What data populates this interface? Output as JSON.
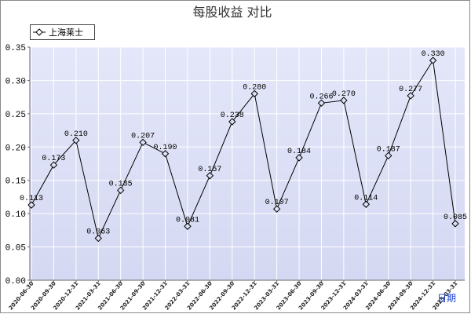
{
  "chart_data": {
    "type": "line",
    "title": "每股收益 对比",
    "xlabel": "日期",
    "ylim": [
      0,
      0.35
    ],
    "yticks": [
      "0.00",
      "0.05",
      "0.10",
      "0.15",
      "0.20",
      "0.25",
      "0.30",
      "0.35"
    ],
    "categories": [
      "2020-06-30",
      "2020-09-30",
      "2020-12-31",
      "2021-03-31",
      "2021-06-30",
      "2021-09-30",
      "2021-12-31",
      "2022-03-31",
      "2022-06-30",
      "2022-09-30",
      "2022-12-31",
      "2023-03-31",
      "2023-06-30",
      "2023-09-30",
      "2023-12-31",
      "2024-03-31",
      "2024-06-30",
      "2024-09-30",
      "2024-12-31",
      "2025-03-31"
    ],
    "series": [
      {
        "name": "上海莱士",
        "values": [
          0.113,
          0.173,
          0.21,
          0.063,
          0.135,
          0.207,
          0.19,
          0.081,
          0.157,
          0.238,
          0.28,
          0.107,
          0.184,
          0.266,
          0.27,
          0.114,
          0.187,
          0.277,
          0.33,
          0.085
        ],
        "labels": [
          "0.113",
          "0.173",
          "0.210",
          "0.063",
          "0.135",
          "0.207",
          "0.190",
          "0.081",
          "0.157",
          "0.238",
          "0.280",
          "0.107",
          "0.184",
          "0.266",
          "0.270",
          "0.114",
          "0.187",
          "0.277",
          "0.330",
          "0.085"
        ],
        "marker": "diamond"
      }
    ],
    "grid": true,
    "legend": "top-left"
  },
  "colors": {
    "plot_background_top": "#e4e7f9",
    "plot_background_bottom": "#d4d8f2",
    "grid": "#ffffff",
    "axis": "#666666",
    "series_line": "#000000",
    "marker_fill": "#dde1f6",
    "x_axis_label": "#1a3fd6",
    "frame": "#8a8a8a"
  }
}
